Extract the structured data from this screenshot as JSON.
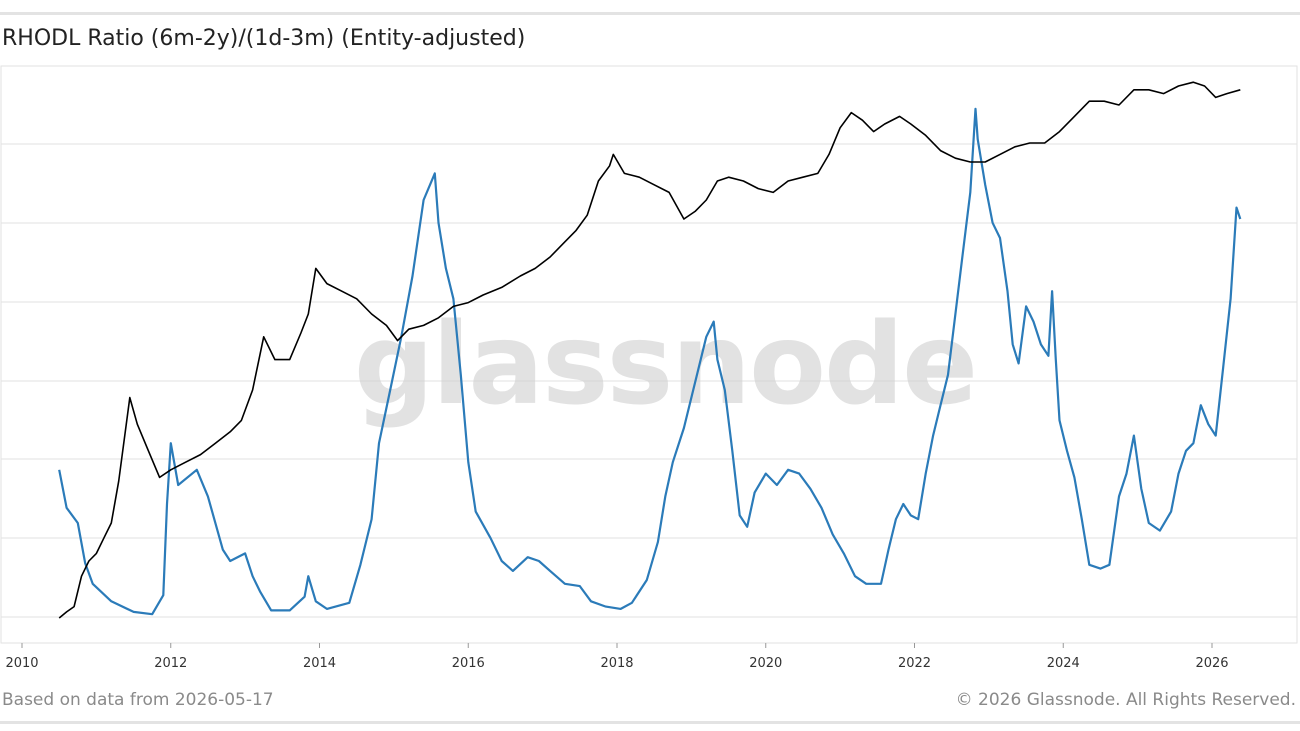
{
  "header": {
    "title": "RHODL Ratio (6m-2y)/(1d-3m) (Entity-adjusted)"
  },
  "footer": {
    "data_date": "Based on data from 2026-05-17",
    "copyright": "© 2026 Glassnode. All Rights Reserved."
  },
  "watermark": "glassnode",
  "colors": {
    "rhodl": "#2b7bb9",
    "price": "#000000",
    "grid": "#e2e2e2"
  },
  "chart_data": {
    "type": "line",
    "title": "RHODL Ratio (6m-2y)/(1d-3m) (Entity-adjusted)",
    "xlabel": "",
    "ylabel": "",
    "x_ticks": [
      "2010",
      "2012",
      "2014",
      "2016",
      "2018",
      "2020",
      "2022",
      "2024",
      "2026"
    ],
    "xlim": [
      2010,
      2026.8
    ],
    "ylim_log10": [
      0,
      7
    ],
    "grid": "horizontal",
    "legend": "none",
    "series": [
      {
        "color": "#2b7bb9",
        "points": [
          [
            2010.5,
            1.95
          ],
          [
            2010.6,
            1.45
          ],
          [
            2010.75,
            1.25
          ],
          [
            2010.85,
            0.72
          ],
          [
            2010.95,
            0.45
          ],
          [
            2011.2,
            0.22
          ],
          [
            2011.5,
            0.08
          ],
          [
            2011.75,
            0.05
          ],
          [
            2011.9,
            0.3
          ],
          [
            2011.95,
            1.5
          ],
          [
            2012.0,
            2.3
          ],
          [
            2012.1,
            1.75
          ],
          [
            2012.35,
            1.95
          ],
          [
            2012.5,
            1.6
          ],
          [
            2012.7,
            0.9
          ],
          [
            2012.8,
            0.75
          ],
          [
            2013.0,
            0.85
          ],
          [
            2013.1,
            0.55
          ],
          [
            2013.2,
            0.35
          ],
          [
            2013.35,
            0.1
          ],
          [
            2013.6,
            0.1
          ],
          [
            2013.8,
            0.28
          ],
          [
            2013.85,
            0.55
          ],
          [
            2013.95,
            0.22
          ],
          [
            2014.1,
            0.12
          ],
          [
            2014.4,
            0.2
          ],
          [
            2014.55,
            0.7
          ],
          [
            2014.7,
            1.3
          ],
          [
            2014.8,
            2.3
          ],
          [
            2014.95,
            3.0
          ],
          [
            2015.1,
            3.7
          ],
          [
            2015.25,
            4.5
          ],
          [
            2015.4,
            5.5
          ],
          [
            2015.55,
            5.85
          ],
          [
            2015.6,
            5.2
          ],
          [
            2015.7,
            4.6
          ],
          [
            2015.8,
            4.2
          ],
          [
            2015.9,
            3.2
          ],
          [
            2016.0,
            2.05
          ],
          [
            2016.1,
            1.4
          ],
          [
            2016.3,
            1.05
          ],
          [
            2016.45,
            0.75
          ],
          [
            2016.6,
            0.62
          ],
          [
            2016.8,
            0.8
          ],
          [
            2016.95,
            0.75
          ],
          [
            2017.1,
            0.62
          ],
          [
            2017.3,
            0.45
          ],
          [
            2017.5,
            0.42
          ],
          [
            2017.65,
            0.22
          ],
          [
            2017.85,
            0.15
          ],
          [
            2018.05,
            0.12
          ],
          [
            2018.2,
            0.2
          ],
          [
            2018.4,
            0.5
          ],
          [
            2018.55,
            1.0
          ],
          [
            2018.65,
            1.6
          ],
          [
            2018.75,
            2.05
          ],
          [
            2018.9,
            2.5
          ],
          [
            2019.05,
            3.1
          ],
          [
            2019.2,
            3.7
          ],
          [
            2019.3,
            3.9
          ],
          [
            2019.35,
            3.4
          ],
          [
            2019.45,
            3.0
          ],
          [
            2019.55,
            2.2
          ],
          [
            2019.65,
            1.35
          ],
          [
            2019.75,
            1.2
          ],
          [
            2019.85,
            1.65
          ],
          [
            2020.0,
            1.9
          ],
          [
            2020.15,
            1.75
          ],
          [
            2020.3,
            1.95
          ],
          [
            2020.45,
            1.9
          ],
          [
            2020.6,
            1.7
          ],
          [
            2020.75,
            1.45
          ],
          [
            2020.9,
            1.1
          ],
          [
            2021.05,
            0.85
          ],
          [
            2021.2,
            0.55
          ],
          [
            2021.35,
            0.45
          ],
          [
            2021.55,
            0.45
          ],
          [
            2021.65,
            0.9
          ],
          [
            2021.75,
            1.3
          ],
          [
            2021.85,
            1.5
          ],
          [
            2021.95,
            1.35
          ],
          [
            2022.05,
            1.3
          ],
          [
            2022.15,
            1.9
          ],
          [
            2022.25,
            2.4
          ],
          [
            2022.35,
            2.8
          ],
          [
            2022.45,
            3.2
          ],
          [
            2022.55,
            4.0
          ],
          [
            2022.65,
            4.8
          ],
          [
            2022.75,
            5.6
          ],
          [
            2022.82,
            6.7
          ],
          [
            2022.85,
            6.3
          ],
          [
            2022.95,
            5.7
          ],
          [
            2023.05,
            5.2
          ],
          [
            2023.15,
            5.0
          ],
          [
            2023.25,
            4.3
          ],
          [
            2023.32,
            3.6
          ],
          [
            2023.4,
            3.35
          ],
          [
            2023.5,
            4.1
          ],
          [
            2023.6,
            3.9
          ],
          [
            2023.7,
            3.6
          ],
          [
            2023.8,
            3.45
          ],
          [
            2023.85,
            4.3
          ],
          [
            2023.9,
            3.4
          ],
          [
            2023.95,
            2.6
          ],
          [
            2024.05,
            2.2
          ],
          [
            2024.15,
            1.85
          ],
          [
            2024.25,
            1.3
          ],
          [
            2024.35,
            0.7
          ],
          [
            2024.5,
            0.65
          ],
          [
            2024.62,
            0.7
          ],
          [
            2024.75,
            1.6
          ],
          [
            2024.85,
            1.9
          ],
          [
            2024.95,
            2.4
          ],
          [
            2025.05,
            1.7
          ],
          [
            2025.15,
            1.25
          ],
          [
            2025.3,
            1.15
          ],
          [
            2025.45,
            1.4
          ],
          [
            2025.55,
            1.9
          ],
          [
            2025.65,
            2.2
          ],
          [
            2025.75,
            2.3
          ],
          [
            2025.85,
            2.8
          ],
          [
            2025.95,
            2.55
          ],
          [
            2026.05,
            2.4
          ],
          [
            2026.15,
            3.3
          ],
          [
            2026.25,
            4.2
          ],
          [
            2026.33,
            5.4
          ],
          [
            2026.38,
            5.25
          ]
        ]
      },
      {
        "color": "#000000",
        "points": [
          [
            2010.5,
            0.0
          ],
          [
            2010.6,
            0.08
          ],
          [
            2010.7,
            0.15
          ],
          [
            2010.8,
            0.55
          ],
          [
            2010.9,
            0.75
          ],
          [
            2011.0,
            0.85
          ],
          [
            2011.1,
            1.05
          ],
          [
            2011.2,
            1.25
          ],
          [
            2011.3,
            1.8
          ],
          [
            2011.45,
            2.9
          ],
          [
            2011.55,
            2.55
          ],
          [
            2011.7,
            2.2
          ],
          [
            2011.85,
            1.85
          ],
          [
            2012.0,
            1.95
          ],
          [
            2012.2,
            2.05
          ],
          [
            2012.4,
            2.15
          ],
          [
            2012.6,
            2.3
          ],
          [
            2012.8,
            2.45
          ],
          [
            2012.95,
            2.6
          ],
          [
            2013.1,
            3.0
          ],
          [
            2013.25,
            3.7
          ],
          [
            2013.4,
            3.4
          ],
          [
            2013.6,
            3.4
          ],
          [
            2013.75,
            3.75
          ],
          [
            2013.85,
            4.0
          ],
          [
            2013.95,
            4.6
          ],
          [
            2014.1,
            4.4
          ],
          [
            2014.3,
            4.3
          ],
          [
            2014.5,
            4.2
          ],
          [
            2014.7,
            4.0
          ],
          [
            2014.9,
            3.85
          ],
          [
            2015.05,
            3.65
          ],
          [
            2015.2,
            3.8
          ],
          [
            2015.4,
            3.85
          ],
          [
            2015.6,
            3.95
          ],
          [
            2015.8,
            4.1
          ],
          [
            2016.0,
            4.15
          ],
          [
            2016.2,
            4.25
          ],
          [
            2016.45,
            4.35
          ],
          [
            2016.7,
            4.5
          ],
          [
            2016.9,
            4.6
          ],
          [
            2017.1,
            4.75
          ],
          [
            2017.3,
            4.95
          ],
          [
            2017.45,
            5.1
          ],
          [
            2017.6,
            5.3
          ],
          [
            2017.75,
            5.75
          ],
          [
            2017.9,
            5.95
          ],
          [
            2017.95,
            6.1
          ],
          [
            2018.1,
            5.85
          ],
          [
            2018.3,
            5.8
          ],
          [
            2018.5,
            5.7
          ],
          [
            2018.7,
            5.6
          ],
          [
            2018.9,
            5.25
          ],
          [
            2019.05,
            5.35
          ],
          [
            2019.2,
            5.5
          ],
          [
            2019.35,
            5.75
          ],
          [
            2019.5,
            5.8
          ],
          [
            2019.7,
            5.75
          ],
          [
            2019.9,
            5.65
          ],
          [
            2020.1,
            5.6
          ],
          [
            2020.3,
            5.75
          ],
          [
            2020.5,
            5.8
          ],
          [
            2020.7,
            5.85
          ],
          [
            2020.85,
            6.1
          ],
          [
            2021.0,
            6.45
          ],
          [
            2021.15,
            6.65
          ],
          [
            2021.3,
            6.55
          ],
          [
            2021.45,
            6.4
          ],
          [
            2021.6,
            6.5
          ],
          [
            2021.8,
            6.6
          ],
          [
            2021.95,
            6.5
          ],
          [
            2022.15,
            6.35
          ],
          [
            2022.35,
            6.15
          ],
          [
            2022.55,
            6.05
          ],
          [
            2022.75,
            6.0
          ],
          [
            2022.95,
            6.0
          ],
          [
            2023.15,
            6.1
          ],
          [
            2023.35,
            6.2
          ],
          [
            2023.55,
            6.25
          ],
          [
            2023.75,
            6.25
          ],
          [
            2023.95,
            6.4
          ],
          [
            2024.15,
            6.6
          ],
          [
            2024.35,
            6.8
          ],
          [
            2024.55,
            6.8
          ],
          [
            2024.75,
            6.75
          ],
          [
            2024.95,
            6.95
          ],
          [
            2025.15,
            6.95
          ],
          [
            2025.35,
            6.9
          ],
          [
            2025.55,
            7.0
          ],
          [
            2025.75,
            7.05
          ],
          [
            2025.9,
            7.0
          ],
          [
            2026.05,
            6.85
          ],
          [
            2026.2,
            6.9
          ],
          [
            2026.38,
            6.95
          ]
        ]
      }
    ]
  }
}
